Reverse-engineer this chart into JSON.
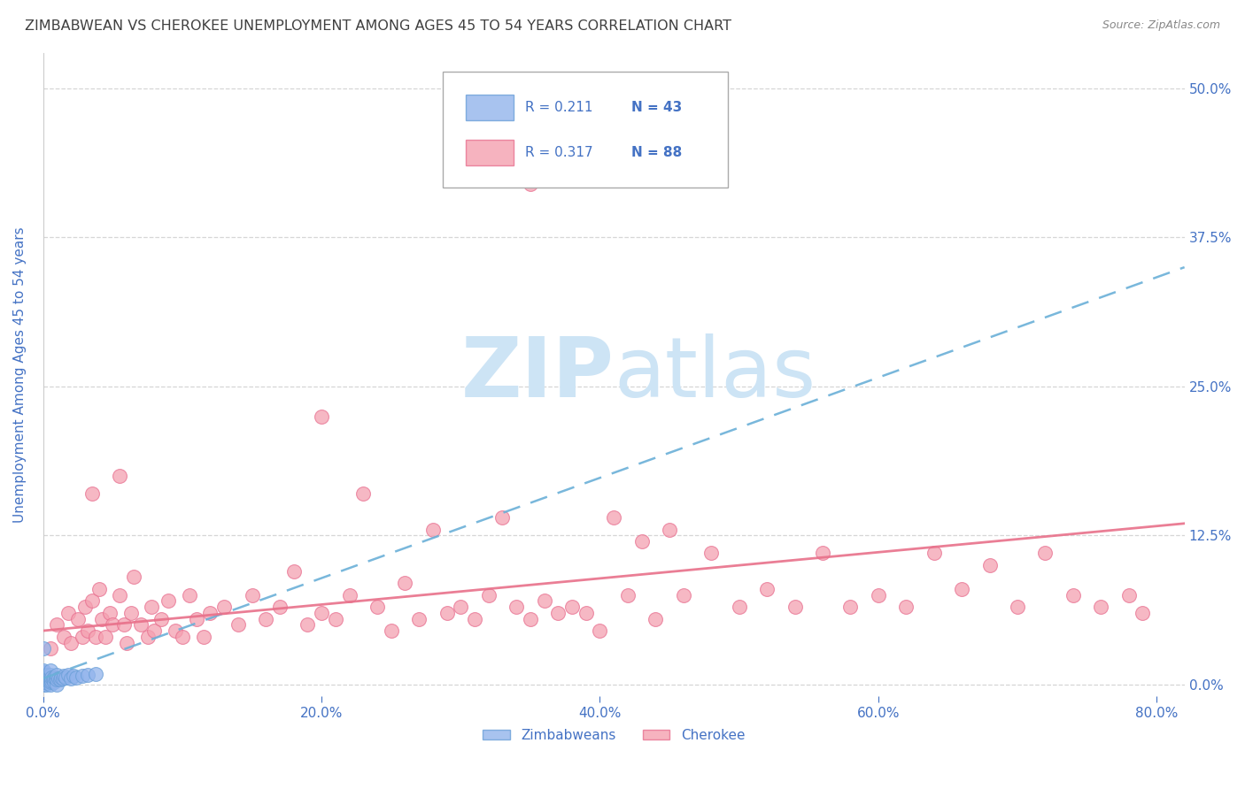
{
  "title": "ZIMBABWEAN VS CHEROKEE UNEMPLOYMENT AMONG AGES 45 TO 54 YEARS CORRELATION CHART",
  "source": "Source: ZipAtlas.com",
  "ylabel": "Unemployment Among Ages 45 to 54 years",
  "right_ytick_labels": [
    "0.0%",
    "12.5%",
    "25.0%",
    "37.5%",
    "50.0%"
  ],
  "right_ytick_values": [
    0.0,
    0.125,
    0.25,
    0.375,
    0.5
  ],
  "xlim": [
    0.0,
    0.82
  ],
  "ylim": [
    -0.01,
    0.53
  ],
  "xtick_labels": [
    "0.0%",
    "20.0%",
    "40.0%",
    "60.0%",
    "80.0%"
  ],
  "xtick_values": [
    0.0,
    0.2,
    0.4,
    0.6,
    0.8
  ],
  "zimbabwean_color": "#92b4ec",
  "cherokee_color": "#f4a0b0",
  "zimbabwean_edge": "#6a9fd8",
  "cherokee_edge": "#e87090",
  "zimbabwean_R": 0.211,
  "zimbabwean_N": 43,
  "cherokee_R": 0.317,
  "cherokee_N": 88,
  "trend_blue_color": "#6ab0d8",
  "trend_pink_color": "#e8708a",
  "watermark_zip": "ZIP",
  "watermark_atlas": "atlas",
  "watermark_color": "#cde4f5",
  "background_color": "#ffffff",
  "grid_color": "#cccccc",
  "title_color": "#404040",
  "title_fontsize": 11.5,
  "axis_tick_color": "#4472c4",
  "scatter_size": 130,
  "zimbabwean_scatter_x": [
    0.0,
    0.0,
    0.0,
    0.0,
    0.0,
    0.0,
    0.0,
    0.0,
    0.002,
    0.002,
    0.002,
    0.002,
    0.003,
    0.003,
    0.003,
    0.004,
    0.005,
    0.005,
    0.005,
    0.005,
    0.005,
    0.006,
    0.006,
    0.007,
    0.008,
    0.008,
    0.009,
    0.01,
    0.01,
    0.01,
    0.011,
    0.012,
    0.013,
    0.014,
    0.015,
    0.016,
    0.018,
    0.02,
    0.022,
    0.024,
    0.028,
    0.032,
    0.038
  ],
  "zimbabwean_scatter_y": [
    0.0,
    0.002,
    0.004,
    0.006,
    0.008,
    0.01,
    0.012,
    0.03,
    0.0,
    0.002,
    0.004,
    0.007,
    0.001,
    0.004,
    0.008,
    0.003,
    0.0,
    0.002,
    0.005,
    0.008,
    0.012,
    0.003,
    0.006,
    0.004,
    0.002,
    0.006,
    0.005,
    0.0,
    0.004,
    0.008,
    0.005,
    0.004,
    0.006,
    0.005,
    0.007,
    0.006,
    0.008,
    0.005,
    0.007,
    0.006,
    0.007,
    0.008,
    0.009
  ],
  "cherokee_scatter_x": [
    0.005,
    0.01,
    0.015,
    0.018,
    0.02,
    0.025,
    0.028,
    0.03,
    0.032,
    0.035,
    0.038,
    0.04,
    0.042,
    0.045,
    0.048,
    0.05,
    0.055,
    0.058,
    0.06,
    0.063,
    0.065,
    0.07,
    0.075,
    0.078,
    0.08,
    0.085,
    0.09,
    0.095,
    0.1,
    0.105,
    0.11,
    0.115,
    0.12,
    0.13,
    0.14,
    0.15,
    0.16,
    0.17,
    0.18,
    0.19,
    0.2,
    0.21,
    0.22,
    0.23,
    0.24,
    0.25,
    0.26,
    0.27,
    0.28,
    0.29,
    0.3,
    0.31,
    0.32,
    0.33,
    0.34,
    0.35,
    0.36,
    0.37,
    0.38,
    0.39,
    0.4,
    0.41,
    0.42,
    0.43,
    0.44,
    0.45,
    0.46,
    0.48,
    0.5,
    0.52,
    0.54,
    0.56,
    0.58,
    0.6,
    0.62,
    0.64,
    0.66,
    0.68,
    0.7,
    0.72,
    0.74,
    0.76,
    0.78,
    0.79,
    0.035,
    0.055,
    0.2,
    0.35
  ],
  "cherokee_scatter_y": [
    0.03,
    0.05,
    0.04,
    0.06,
    0.035,
    0.055,
    0.04,
    0.065,
    0.045,
    0.07,
    0.04,
    0.08,
    0.055,
    0.04,
    0.06,
    0.05,
    0.075,
    0.05,
    0.035,
    0.06,
    0.09,
    0.05,
    0.04,
    0.065,
    0.045,
    0.055,
    0.07,
    0.045,
    0.04,
    0.075,
    0.055,
    0.04,
    0.06,
    0.065,
    0.05,
    0.075,
    0.055,
    0.065,
    0.095,
    0.05,
    0.06,
    0.055,
    0.075,
    0.16,
    0.065,
    0.045,
    0.085,
    0.055,
    0.13,
    0.06,
    0.065,
    0.055,
    0.075,
    0.14,
    0.065,
    0.055,
    0.07,
    0.06,
    0.065,
    0.06,
    0.045,
    0.14,
    0.075,
    0.12,
    0.055,
    0.13,
    0.075,
    0.11,
    0.065,
    0.08,
    0.065,
    0.11,
    0.065,
    0.075,
    0.065,
    0.11,
    0.08,
    0.1,
    0.065,
    0.11,
    0.075,
    0.065,
    0.075,
    0.06,
    0.16,
    0.175,
    0.225,
    0.42
  ]
}
